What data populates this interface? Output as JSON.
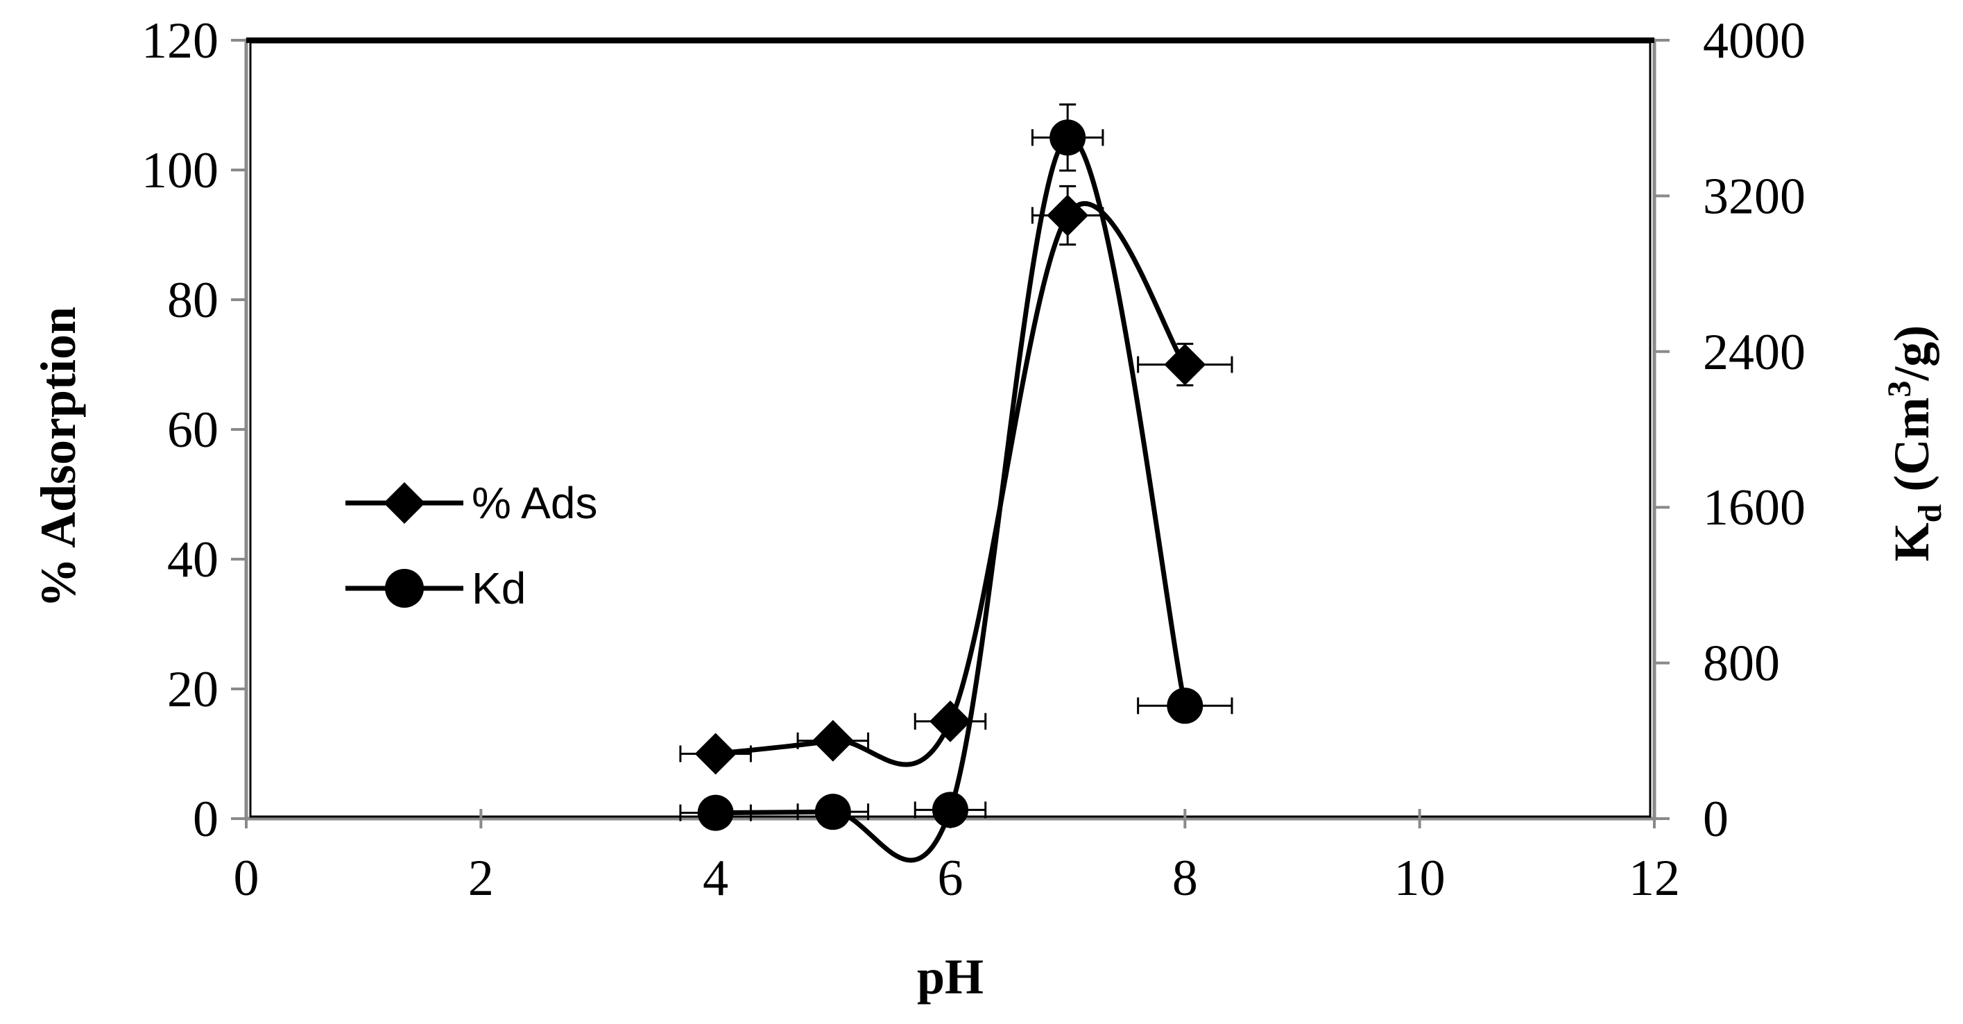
{
  "chart_data": {
    "type": "scatter",
    "xlabel": "pH",
    "ylabel": "% Adsorption",
    "y2label": {
      "main": "K",
      "sub": "d",
      "rest": " (Cm",
      "sup": "3",
      "end": "/g)"
    },
    "xlim": [
      0,
      12
    ],
    "ylim": [
      0,
      120
    ],
    "y2lim": [
      0,
      4000
    ],
    "x_ticks": [
      0,
      2,
      4,
      6,
      8,
      10,
      12
    ],
    "y_ticks": [
      0,
      20,
      40,
      60,
      80,
      100,
      120
    ],
    "y2_ticks": [
      0,
      800,
      1600,
      2400,
      3200,
      4000
    ],
    "grid": false,
    "legend_position": "middle-left",
    "series": [
      {
        "name": "% Ads",
        "axis": "left",
        "marker": "diamond",
        "color": "#000000",
        "smoothed": true,
        "x": [
          4,
          5,
          6,
          7,
          8
        ],
        "y": [
          10,
          12,
          15,
          93,
          70
        ],
        "x_err": [
          0.3,
          0.3,
          0.3,
          0.3,
          0.4
        ],
        "y_err": [
          1.5,
          1.5,
          1.5,
          4.5,
          3.2
        ]
      },
      {
        "name": "Kd",
        "axis": "right",
        "marker": "circle",
        "color": "#000000",
        "smoothed": true,
        "x": [
          4,
          5,
          6,
          7,
          8
        ],
        "y": [
          30,
          35,
          45,
          3500,
          580
        ],
        "x_err": [
          0.3,
          0.3,
          0.3,
          0.3,
          0.4
        ],
        "y_err": [
          0,
          0,
          0,
          170,
          0
        ]
      }
    ]
  }
}
